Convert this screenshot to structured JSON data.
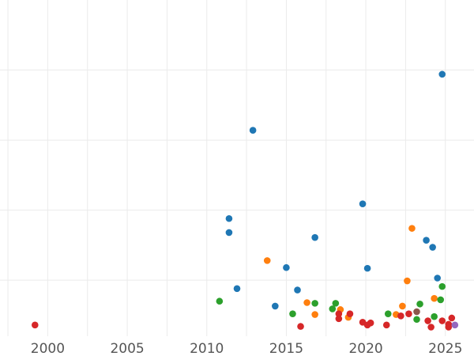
{
  "chart_data": {
    "type": "scatter",
    "title": "",
    "xlabel": "",
    "ylabel": "",
    "xlim": [
      1997,
      2026.8
    ],
    "ylim": [
      0,
      4.8
    ],
    "grid": true,
    "x_ticks": [
      2000,
      2005,
      2010,
      2015,
      2020,
      2025
    ],
    "x_tick_labels": [
      "2000",
      "2005",
      "2010",
      "2015",
      "2020",
      "2025"
    ],
    "y_ticks": [
      0.8,
      1.8,
      2.8,
      3.8
    ],
    "y_tick_labels": [],
    "legend": "none",
    "series": [
      {
        "name": "blue",
        "color": "#1f77b4",
        "points": [
          [
            2011.4,
            1.68
          ],
          [
            2011.4,
            1.48
          ],
          [
            2011.9,
            0.68
          ],
          [
            2012.9,
            2.94
          ],
          [
            2014.3,
            0.43
          ],
          [
            2015.0,
            0.98
          ],
          [
            2015.7,
            0.66
          ],
          [
            2016.8,
            1.41
          ],
          [
            2019.8,
            1.89
          ],
          [
            2020.1,
            0.97
          ],
          [
            2023.8,
            1.37
          ],
          [
            2024.2,
            1.27
          ],
          [
            2024.5,
            0.83
          ],
          [
            2024.8,
            3.74
          ]
        ]
      },
      {
        "name": "orange",
        "color": "#ff7f0e",
        "points": [
          [
            2013.8,
            1.08
          ],
          [
            2016.3,
            0.48
          ],
          [
            2016.8,
            0.31
          ],
          [
            2018.4,
            0.38
          ],
          [
            2018.9,
            0.27
          ],
          [
            2021.9,
            0.31
          ],
          [
            2022.3,
            0.43
          ],
          [
            2022.6,
            0.79
          ],
          [
            2022.9,
            1.54
          ],
          [
            2024.3,
            0.54
          ]
        ]
      },
      {
        "name": "green",
        "color": "#2ca02c",
        "points": [
          [
            2010.8,
            0.5
          ],
          [
            2015.4,
            0.32
          ],
          [
            2016.8,
            0.47
          ],
          [
            2017.9,
            0.39
          ],
          [
            2018.1,
            0.47
          ],
          [
            2021.4,
            0.32
          ],
          [
            2023.2,
            0.24
          ],
          [
            2023.4,
            0.46
          ],
          [
            2024.3,
            0.28
          ],
          [
            2024.7,
            0.52
          ],
          [
            2024.8,
            0.71
          ]
        ]
      },
      {
        "name": "red",
        "color": "#d62728",
        "points": [
          [
            1999.2,
            0.16
          ],
          [
            2015.9,
            0.14
          ],
          [
            2018.3,
            0.32
          ],
          [
            2018.3,
            0.25
          ],
          [
            2019.0,
            0.32
          ],
          [
            2019.8,
            0.2
          ],
          [
            2020.1,
            0.16
          ],
          [
            2020.3,
            0.19
          ],
          [
            2021.3,
            0.16
          ],
          [
            2022.2,
            0.29
          ],
          [
            2022.7,
            0.32
          ],
          [
            2023.9,
            0.22
          ],
          [
            2024.1,
            0.13
          ],
          [
            2024.8,
            0.22
          ],
          [
            2025.2,
            0.17
          ],
          [
            2025.2,
            0.13
          ],
          [
            2025.4,
            0.26
          ]
        ]
      },
      {
        "name": "brown",
        "color": "#8c564b",
        "points": [
          [
            2023.2,
            0.35
          ]
        ]
      },
      {
        "name": "purple",
        "color": "#9467bd",
        "points": [
          [
            2025.6,
            0.16
          ]
        ]
      }
    ]
  }
}
